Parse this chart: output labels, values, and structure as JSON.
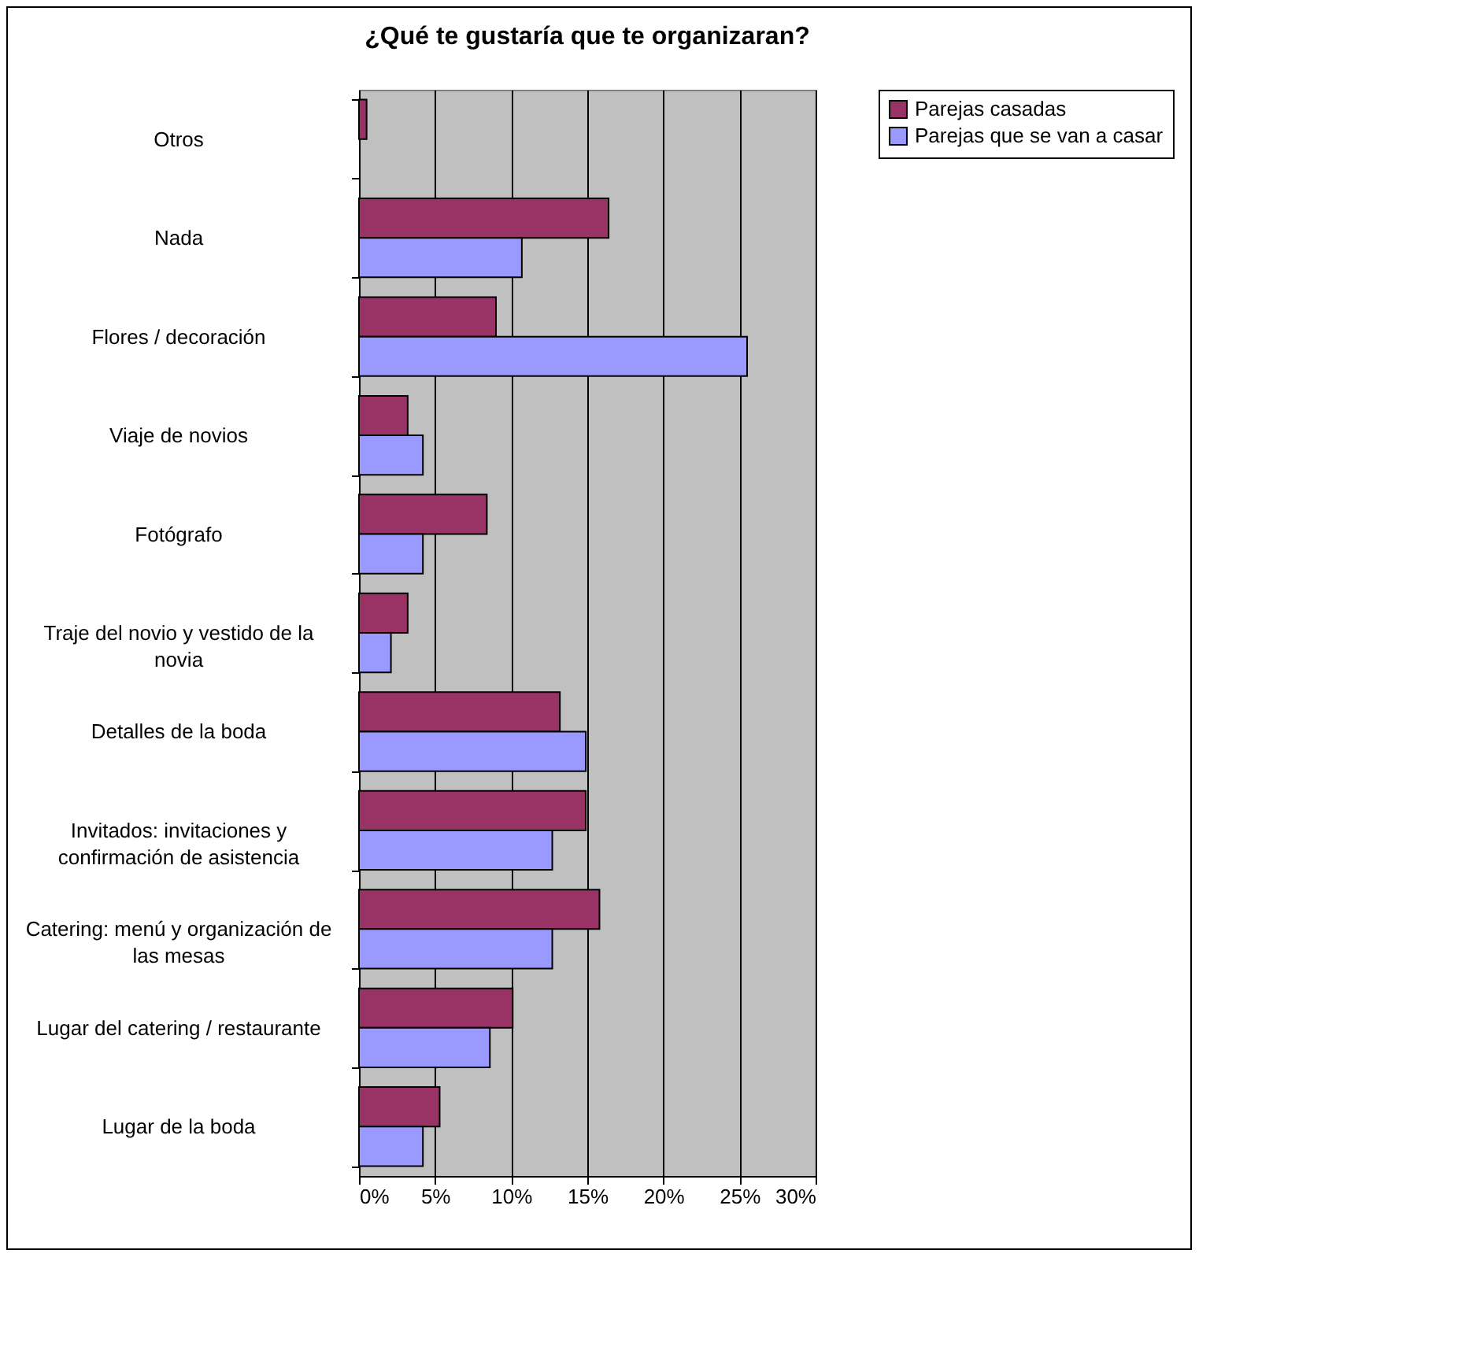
{
  "chart_data": {
    "type": "bar",
    "orientation": "horizontal",
    "title": "¿Qué te gustaría que te organizaran?",
    "categories": [
      "Otros",
      "Nada",
      "Flores / decoración",
      "Viaje de novios",
      "Fotógrafo",
      "Traje del novio y vestido de la novia",
      "Detalles de la boda",
      "Invitados: invitaciones y confirmación de asistencia",
      "Catering: menú y organización de las mesas",
      "Lugar del catering / restaurante",
      "Lugar de la boda"
    ],
    "series": [
      {
        "name": "Parejas casadas",
        "color": "#993366",
        "values": [
          0.5,
          16.4,
          9.0,
          3.2,
          8.4,
          3.2,
          13.2,
          14.9,
          15.8,
          10.1,
          5.3
        ]
      },
      {
        "name": "Parejas que se van a casar",
        "color": "#9999ff",
        "values": [
          null,
          10.7,
          25.5,
          4.2,
          4.2,
          2.1,
          14.9,
          12.7,
          12.7,
          8.6,
          4.2
        ]
      }
    ],
    "xlim": [
      0,
      30
    ],
    "xticks": [
      {
        "value": 0,
        "label": "0%"
      },
      {
        "value": 5,
        "label": "5%"
      },
      {
        "value": 10,
        "label": "10%"
      },
      {
        "value": 15,
        "label": "15%"
      },
      {
        "value": 20,
        "label": "20%"
      },
      {
        "value": 25,
        "label": "25%"
      },
      {
        "value": 30,
        "label": "30%"
      }
    ],
    "grid": "x",
    "legend": "right"
  }
}
